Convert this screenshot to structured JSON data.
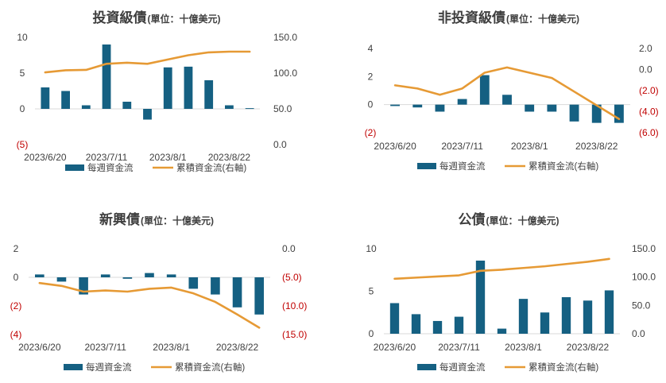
{
  "colors": {
    "bar": "#156082",
    "line": "#e69a35",
    "negative_label": "#c00000",
    "text": "#404040"
  },
  "legend": {
    "bar_label": "每週資金流",
    "line_label": "累積資金流(右軸)"
  },
  "x_tick_labels": [
    "2023/6/20",
    "2023/7/11",
    "2023/8/1",
    "2023/8/22"
  ],
  "chart_data": [
    {
      "type": "bar+line",
      "title": "投資級債",
      "unit": "(單位：十億美元)",
      "left_ticks": [
        "10",
        "5",
        "0",
        "(5)"
      ],
      "right_ticks": [
        "150.0",
        "100.0",
        "50.0",
        "0.0"
      ],
      "ylim_left": [
        -5,
        10
      ],
      "ylim_right": [
        0,
        150
      ],
      "series": [
        {
          "name": "每週資金流",
          "kind": "bar",
          "axis": "left",
          "values": [
            3.0,
            2.5,
            0.5,
            9.0,
            1.0,
            -1.5,
            5.8,
            5.9,
            4.0,
            0.5,
            0.1
          ]
        },
        {
          "name": "累積資金流(右軸)",
          "kind": "line",
          "axis": "right",
          "values": [
            101,
            104,
            104.5,
            113,
            114.5,
            113,
            119,
            125,
            129,
            130,
            130
          ]
        }
      ]
    },
    {
      "type": "bar+line",
      "title": "非投資級債",
      "unit": "(單位：十億美元)",
      "left_ticks": [
        "4",
        "2",
        "0",
        "(2)"
      ],
      "right_ticks": [
        "2.0",
        "0.0",
        "(2.0)",
        "(4.0)",
        "(6.0)"
      ],
      "ylim_left": [
        -2,
        4
      ],
      "ylim_right": [
        -6,
        2
      ],
      "series": [
        {
          "name": "每週資金流",
          "kind": "bar",
          "axis": "left",
          "values": [
            -0.1,
            -0.2,
            -0.5,
            0.4,
            2.1,
            0.7,
            -0.5,
            -0.5,
            -1.2,
            -1.3,
            -1.3
          ]
        },
        {
          "name": "累積資金流(右軸)",
          "kind": "line",
          "axis": "right",
          "values": [
            -1.5,
            -1.8,
            -2.4,
            -1.8,
            -0.3,
            0.2,
            -0.3,
            -0.8,
            -2.1,
            -3.4,
            -4.7
          ]
        }
      ]
    },
    {
      "type": "bar+line",
      "title": "新興債",
      "unit": "(單位：十億美元)",
      "left_ticks": [
        "2",
        "0",
        "(2)",
        "(4)"
      ],
      "right_ticks": [
        "0.0",
        "(5.0)",
        "(10.0)",
        "(15.0)"
      ],
      "ylim_left": [
        -4,
        2
      ],
      "ylim_right": [
        -15,
        0
      ],
      "series": [
        {
          "name": "每週資金流",
          "kind": "bar",
          "axis": "left",
          "values": [
            0.2,
            -0.3,
            -1.2,
            0.2,
            -0.1,
            0.3,
            0.2,
            -0.8,
            -1.2,
            -2.1,
            -2.6
          ]
        },
        {
          "name": "累積資金流(右軸)",
          "kind": "line",
          "axis": "right",
          "values": [
            -6,
            -6.5,
            -7.5,
            -7.3,
            -7.5,
            -7,
            -6.8,
            -7.8,
            -9.3,
            -11.5,
            -13.8
          ]
        }
      ]
    },
    {
      "type": "bar+line",
      "title": "公債",
      "unit": "(單位：十億美元)",
      "left_ticks": [
        "10",
        "5",
        "0"
      ],
      "right_ticks": [
        "150.0",
        "100.0",
        "50.0",
        "0.0"
      ],
      "ylim_left": [
        0,
        10
      ],
      "ylim_right": [
        0,
        150
      ],
      "series": [
        {
          "name": "每週資金流",
          "kind": "bar",
          "axis": "left",
          "values": [
            3.6,
            2.3,
            1.5,
            2.0,
            8.6,
            0.6,
            4.1,
            2.5,
            4.3,
            3.9,
            5.1
          ]
        },
        {
          "name": "累積資金流(右軸)",
          "kind": "line",
          "axis": "right",
          "values": [
            97,
            99,
            101,
            103,
            111,
            113,
            116,
            119,
            123,
            127,
            132
          ]
        }
      ]
    }
  ]
}
